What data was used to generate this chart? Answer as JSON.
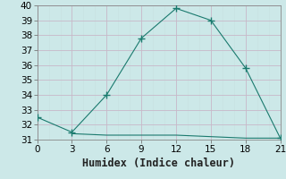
{
  "xlabel": "Humidex (Indice chaleur)",
  "line1_x": [
    0,
    3,
    6,
    9,
    12,
    15,
    18,
    21
  ],
  "line1_y": [
    32.5,
    31.5,
    34,
    37.8,
    39.8,
    39,
    35.8,
    31.1
  ],
  "line2_x": [
    3,
    6,
    9,
    12,
    15,
    18,
    21
  ],
  "line2_y": [
    31.4,
    31.3,
    31.3,
    31.3,
    31.2,
    31.1,
    31.1
  ],
  "line_color": "#1a7a6e",
  "bg_color": "#cce8e8",
  "grid_major_color": "#b8d8d8",
  "grid_minor_color": "#c8e0e0",
  "xlim": [
    0,
    21
  ],
  "ylim": [
    31,
    40
  ],
  "xticks": [
    0,
    3,
    6,
    9,
    12,
    15,
    18,
    21
  ],
  "yticks": [
    31,
    32,
    33,
    34,
    35,
    36,
    37,
    38,
    39,
    40
  ],
  "tick_fontsize": 7.5,
  "xlabel_fontsize": 8.5,
  "marker_size": 3.5
}
